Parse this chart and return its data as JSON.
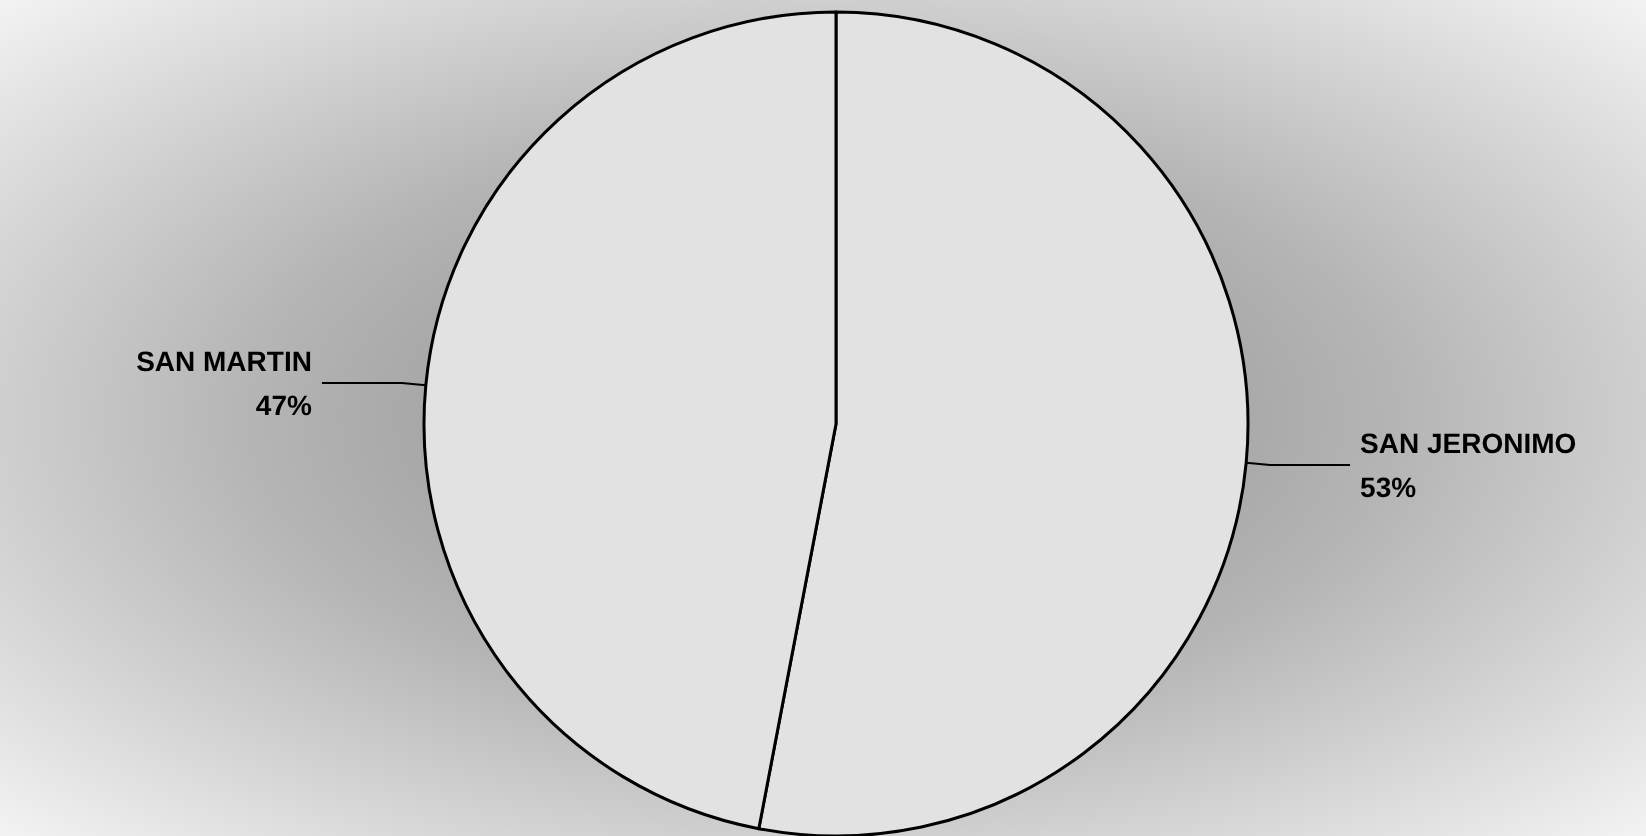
{
  "chart_data": {
    "type": "pie",
    "categories": [
      "SAN JERONIMO",
      "SAN MARTIN"
    ],
    "values": [
      53,
      47
    ],
    "colors": [
      "#e2e2e2",
      "#e2e2e2"
    ],
    "value_labels": [
      "53%",
      "47%"
    ],
    "legend": false
  }
}
